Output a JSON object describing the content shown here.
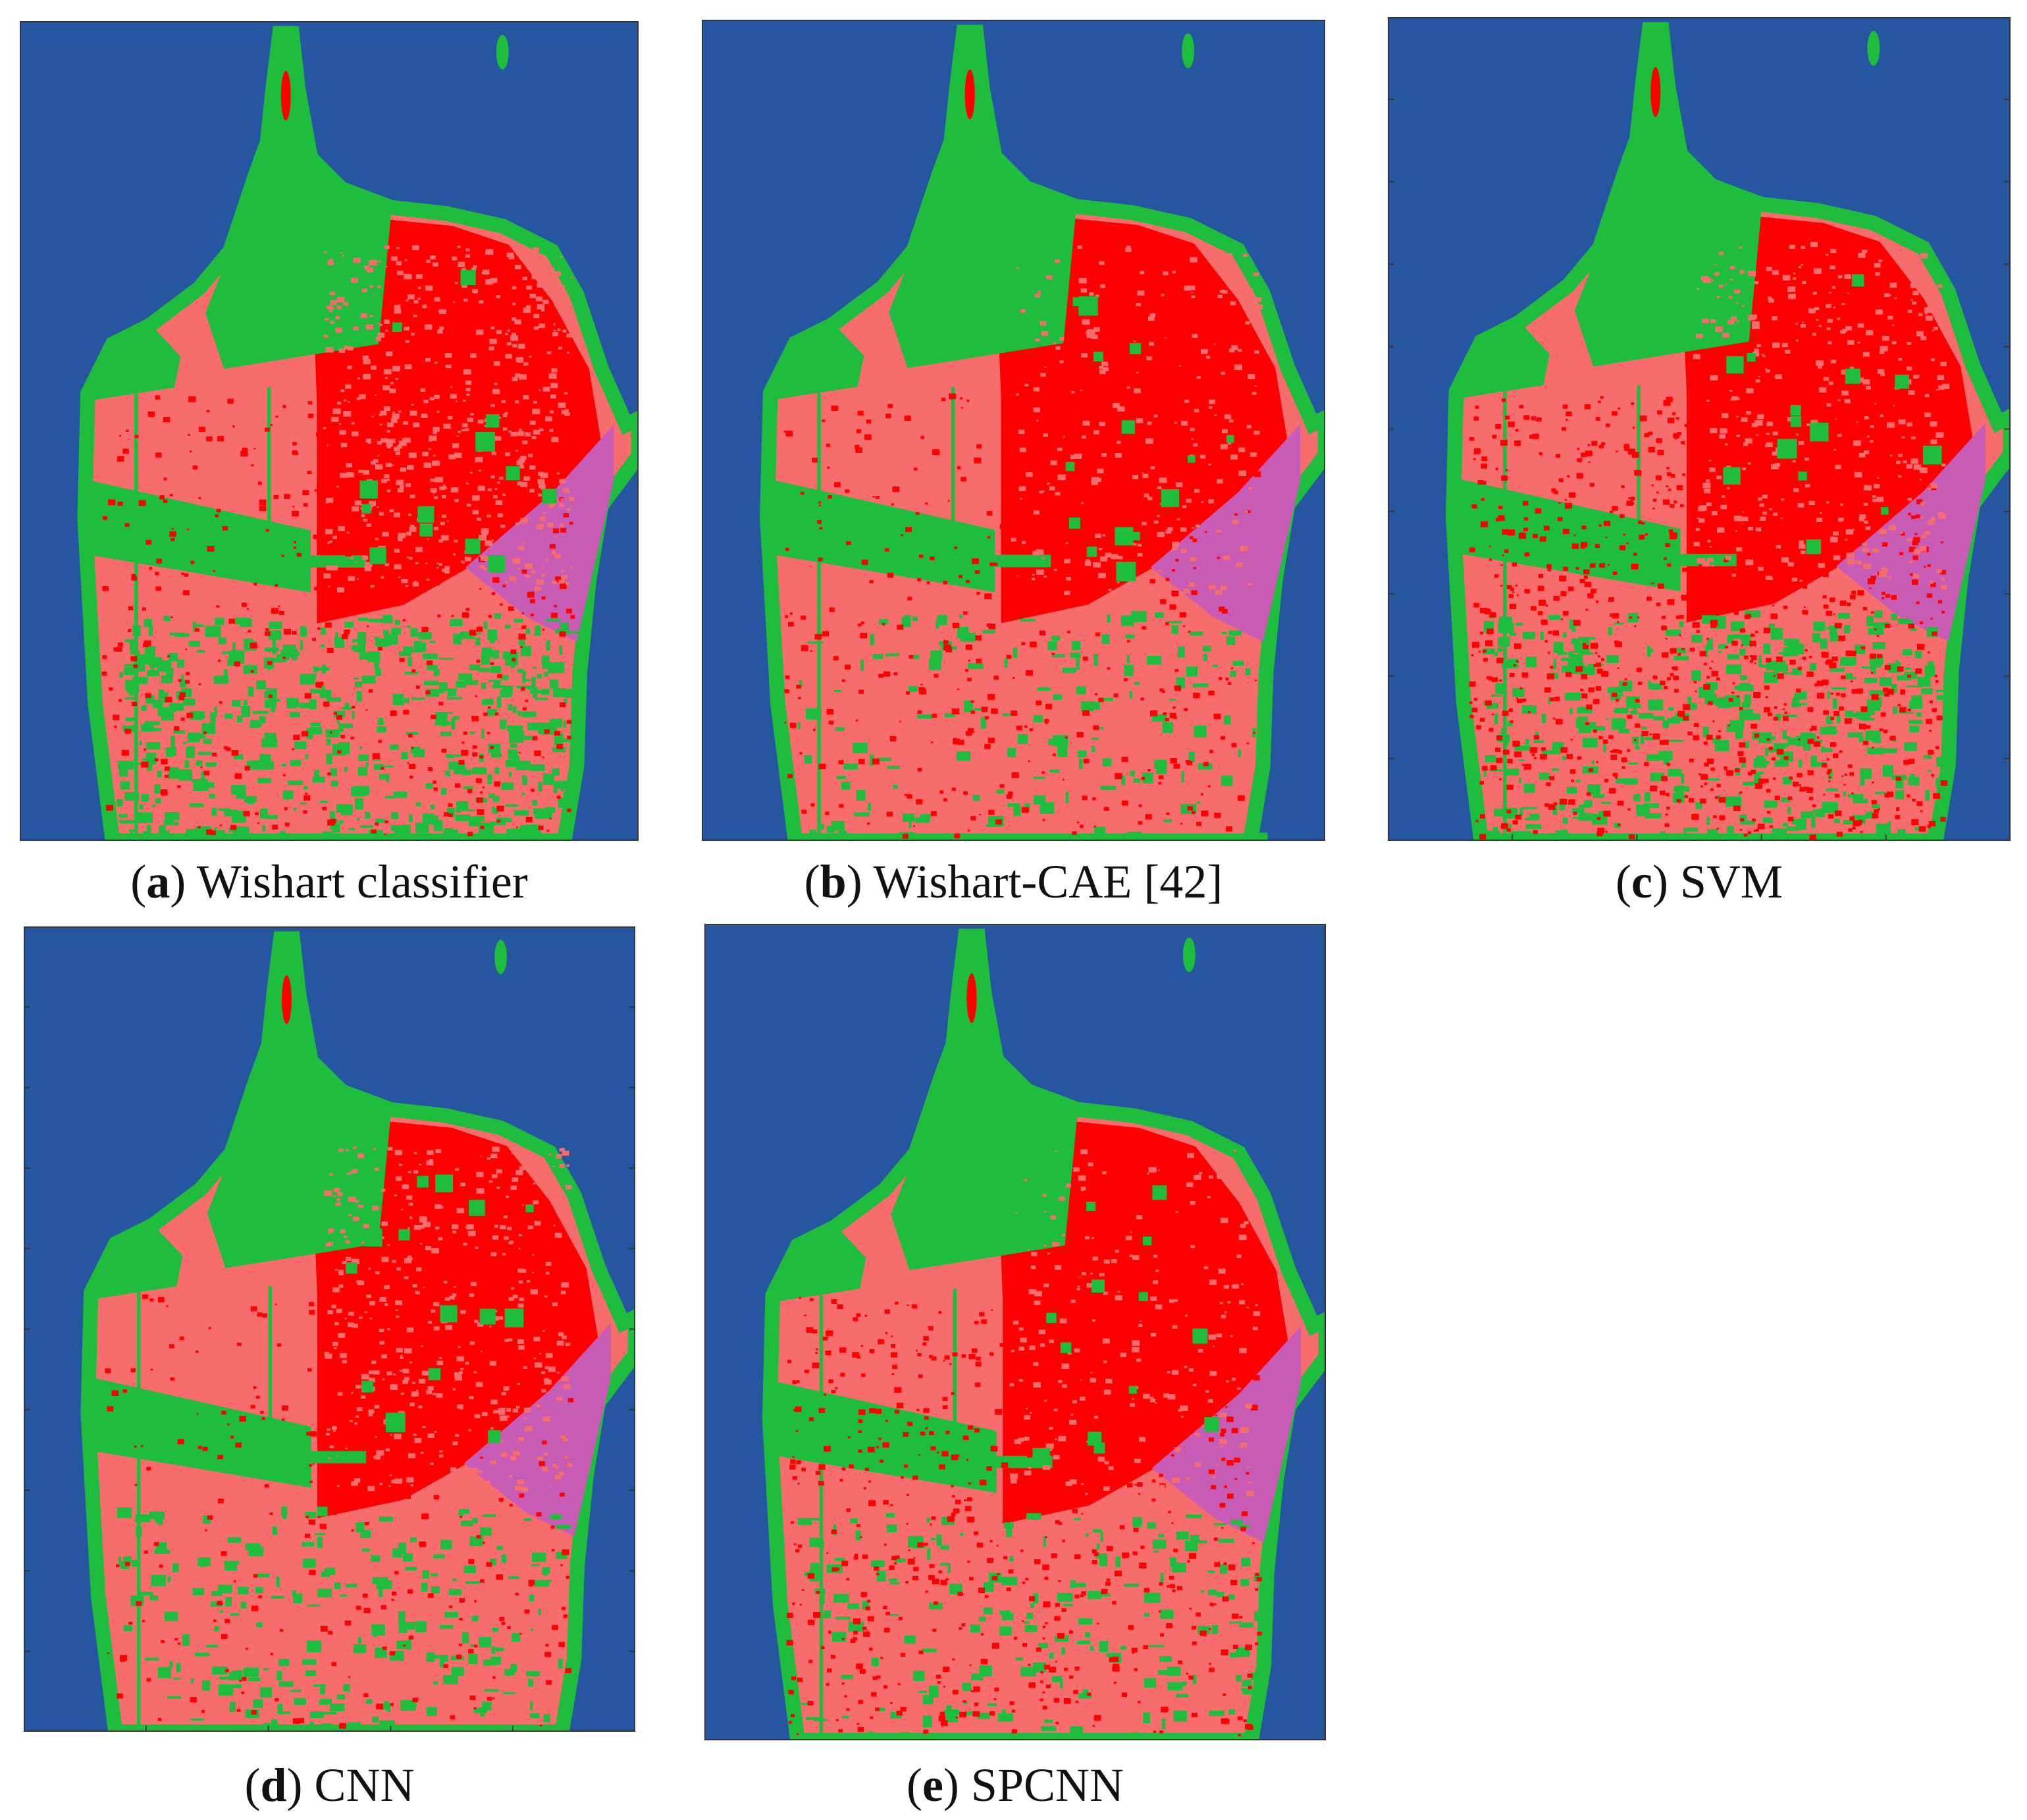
{
  "figure": {
    "panels": [
      {
        "letter": "a",
        "label": "Wishart classifier",
        "ticks": false
      },
      {
        "letter": "b",
        "label": "Wishart-CAE [42]",
        "ticks": false
      },
      {
        "letter": "c",
        "label": "SVM",
        "ticks": true
      },
      {
        "letter": "d",
        "label": "CNN",
        "ticks": true
      },
      {
        "letter": "e",
        "label": "SPCNN",
        "ticks": false
      }
    ],
    "class_colors": {
      "water": "#2756a0",
      "vegetation": "#1fbd3d",
      "low_density_urban": "#f76d6d",
      "high_density_urban": "#ff0000",
      "developed": "#c85cb4"
    }
  }
}
